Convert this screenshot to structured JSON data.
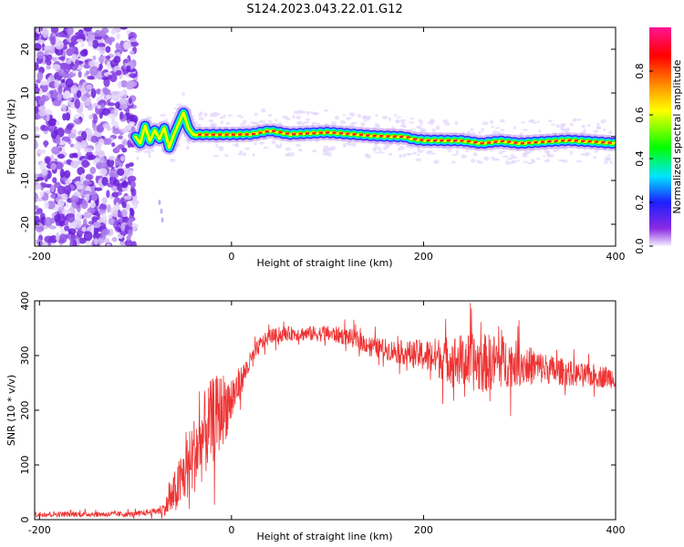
{
  "chart_data": [
    {
      "type": "heatmap",
      "title": "S124.2023.043.22.01.G12",
      "xlabel": "Height of straight line (km)",
      "ylabel": "Frequency (Hz)",
      "xlim": [
        -205,
        400
      ],
      "ylim": [
        -25,
        25
      ],
      "xticks": [
        -200,
        0,
        200,
        400
      ],
      "yticks": [
        -20,
        -10,
        0,
        10,
        20
      ],
      "noise_region_x": [
        -205,
        -100
      ],
      "ridge": {
        "x": [
          -100,
          -95,
          -90,
          -85,
          -80,
          -75,
          -70,
          -65,
          -60,
          -55,
          -50,
          -45,
          -40,
          -30,
          -10,
          0,
          20,
          40,
          60,
          100,
          150,
          180,
          190,
          200,
          240,
          260,
          280,
          300,
          320,
          350,
          380,
          400
        ],
        "y": [
          0.0,
          -1.5,
          2.5,
          -1.0,
          1.5,
          -0.5,
          2.0,
          -2.5,
          0.5,
          3.0,
          5.5,
          2.0,
          0.5,
          0.5,
          0.5,
          0.5,
          0.6,
          1.4,
          0.6,
          1.0,
          0.2,
          0.0,
          -0.6,
          -0.8,
          -0.9,
          -1.5,
          -1.0,
          -1.5,
          -1.2,
          -0.8,
          -1.2,
          -1.5
        ]
      },
      "colorbar": {
        "label": "Normalized spectral amplitude",
        "range": [
          0,
          1
        ],
        "ticks": [
          "0.0",
          "0.2",
          "0.4",
          "0.6",
          "0.8"
        ],
        "colors": [
          "#f5f0ff",
          "#8a2be2",
          "#1e1eff",
          "#00e5ff",
          "#00ff00",
          "#ffff00",
          "#ff7f00",
          "#ff0000",
          "#ff1493"
        ]
      }
    },
    {
      "type": "line",
      "title": "",
      "xlabel": "Height of straight line (km)",
      "ylabel": "SNR (10 * v/v)",
      "xlim": [
        -205,
        400
      ],
      "ylim": [
        0,
        400
      ],
      "xticks": [
        -200,
        0,
        200,
        400
      ],
      "yticks": [
        0,
        100,
        200,
        300,
        400
      ],
      "color": "#ee3333",
      "series": [
        {
          "x": [
            -205,
            -150,
            -100,
            -80,
            -70,
            -60,
            -50,
            -40,
            -30,
            -20,
            -10,
            0,
            10,
            20,
            30,
            40,
            60,
            80,
            100,
            120,
            150,
            180,
            200,
            220,
            240,
            260,
            280,
            300,
            330,
            360,
            400
          ],
          "values": [
            10,
            10,
            10,
            15,
            20,
            45,
            80,
            115,
            150,
            180,
            200,
            220,
            255,
            290,
            320,
            335,
            340,
            340,
            340,
            335,
            315,
            305,
            300,
            295,
            290,
            285,
            290,
            285,
            275,
            265,
            260
          ],
          "noise_amplitude": [
            5,
            5,
            5,
            6,
            12,
            40,
            55,
            70,
            80,
            80,
            70,
            50,
            25,
            18,
            15,
            13,
            13,
            14,
            15,
            16,
            18,
            22,
            30,
            40,
            50,
            55,
            50,
            40,
            28,
            22,
            20
          ]
        }
      ]
    }
  ]
}
